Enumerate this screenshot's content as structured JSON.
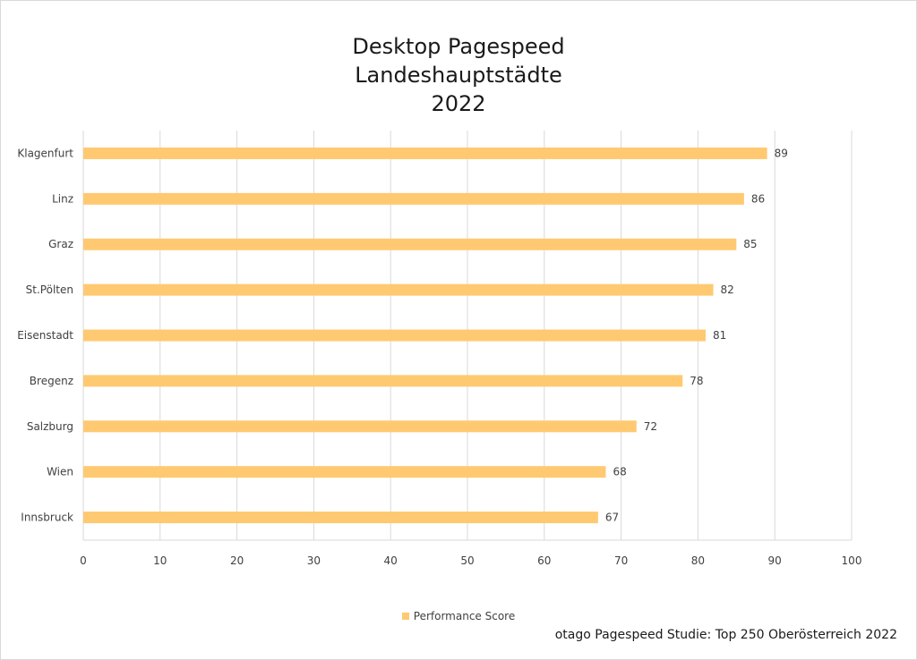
{
  "title_lines": [
    "Desktop Pagespeed",
    "Landeshauptstädte",
    "2022"
  ],
  "legend_label": "Performance Score",
  "source_note": "otago Pagespeed Studie: Top 250 Oberösterreich 2022",
  "colors": {
    "bar": "#ffc971",
    "grid": "#d9d9d9",
    "text": "#404040"
  },
  "chart_data": {
    "type": "bar",
    "orientation": "horizontal",
    "categories": [
      "Klagenfurt",
      "Linz",
      "Graz",
      "St.Pölten",
      "Eisenstadt",
      "Bregenz",
      "Salzburg",
      "Wien",
      "Innsbruck"
    ],
    "series": [
      {
        "name": "Performance Score",
        "values": [
          89,
          86,
          85,
          82,
          81,
          78,
          72,
          68,
          67
        ]
      }
    ],
    "xlim": [
      0,
      100
    ],
    "xticks": [
      0,
      10,
      20,
      30,
      40,
      50,
      60,
      70,
      80,
      90,
      100
    ],
    "grid": true,
    "legend_position": "bottom",
    "data_labels": true
  }
}
